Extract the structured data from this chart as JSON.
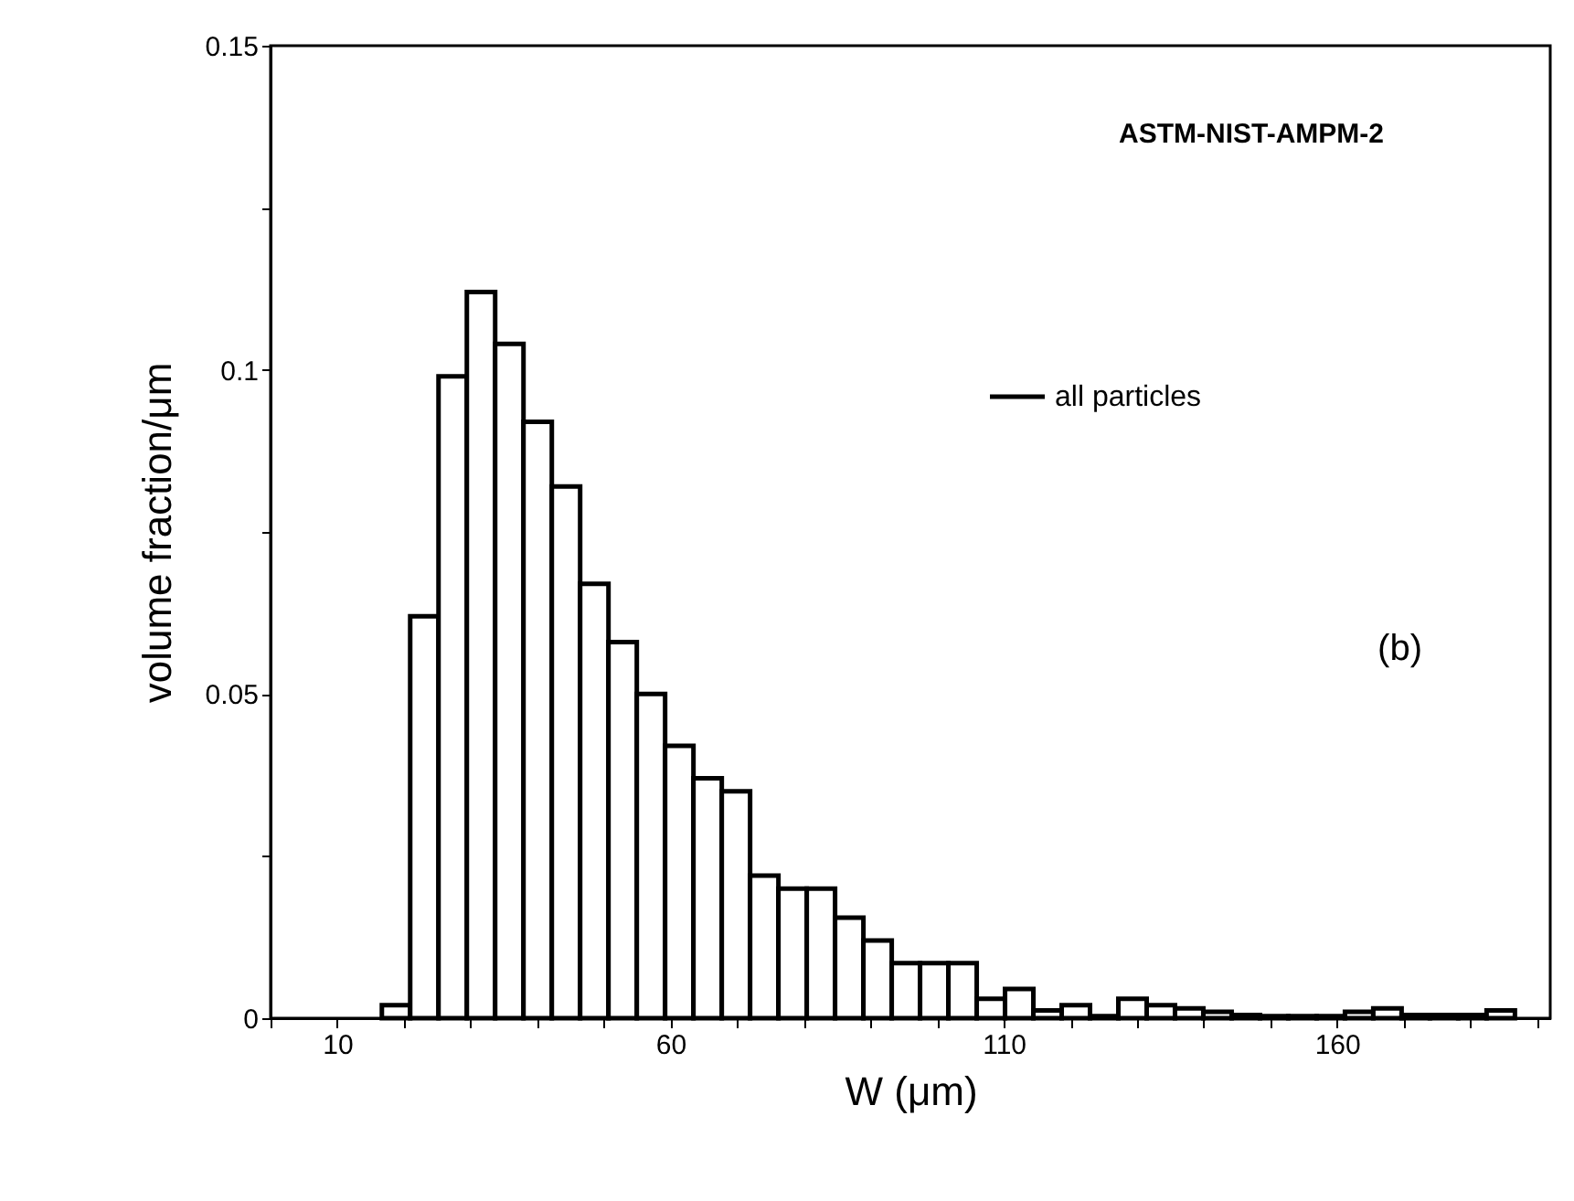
{
  "chart_data": {
    "type": "histogram",
    "xlabel": "W (μm)",
    "ylabel": "volume fraction/μm",
    "annotations": [
      "ASTM-NIST-AMPM-2",
      "(b)"
    ],
    "bins": [
      16.7,
      20.95,
      25.2,
      29.45,
      33.7,
      37.95,
      42.2,
      46.45,
      50.7,
      54.95,
      59.2,
      63.45,
      67.7,
      71.95,
      76.2,
      80.45,
      84.7,
      88.95,
      93.2,
      97.45,
      101.7,
      105.95,
      110.2,
      114.45,
      118.7,
      122.95,
      127.2,
      131.45,
      135.7,
      139.95,
      144.2,
      148.45,
      152.7,
      156.95,
      161.2,
      165.45,
      169.7,
      173.95,
      178.2,
      182.45,
      186.7
    ],
    "series": [
      {
        "name": "all particles",
        "color": "#000000",
        "values": [
          0.002,
          0.062,
          0.099,
          0.112,
          0.104,
          0.092,
          0.082,
          0.067,
          0.058,
          0.05,
          0.042,
          0.037,
          0.035,
          0.022,
          0.02,
          0.02,
          0.0155,
          0.012,
          0.0085,
          0.0085,
          0.0085,
          0.003,
          0.0045,
          0.0012,
          0.002,
          0.0003,
          0.003,
          0.002,
          0.0015,
          0.001,
          0.0005,
          0.0003,
          0.0003,
          0.0003,
          0.001,
          0.0015,
          0.0005,
          0.0005,
          0.0005,
          0.0012
        ]
      }
    ],
    "xlim": [
      0,
      192
    ],
    "ylim": [
      0,
      0.15
    ],
    "xticks": [
      {
        "value": 0,
        "label": null
      },
      10,
      {
        "value": 20,
        "label": null
      },
      {
        "value": 30,
        "label": null
      },
      {
        "value": 40,
        "label": null
      },
      {
        "value": 50,
        "label": null
      },
      60,
      {
        "value": 70,
        "label": null
      },
      {
        "value": 80,
        "label": null
      },
      {
        "value": 90,
        "label": null
      },
      {
        "value": 100,
        "label": null
      },
      110,
      {
        "value": 120,
        "label": null
      },
      {
        "value": 130,
        "label": null
      },
      {
        "value": 140,
        "label": null
      },
      {
        "value": 150,
        "label": null
      },
      160,
      {
        "value": 170,
        "label": null
      },
      {
        "value": 180,
        "label": null
      },
      {
        "value": 190,
        "label": null
      }
    ],
    "yticks": [
      0,
      {
        "value": 0.025,
        "label": null
      },
      0.05,
      {
        "value": 0.075,
        "label": null
      },
      0.1,
      {
        "value": 0.125,
        "label": null
      },
      0.15
    ],
    "grid": false,
    "legend": "right"
  }
}
